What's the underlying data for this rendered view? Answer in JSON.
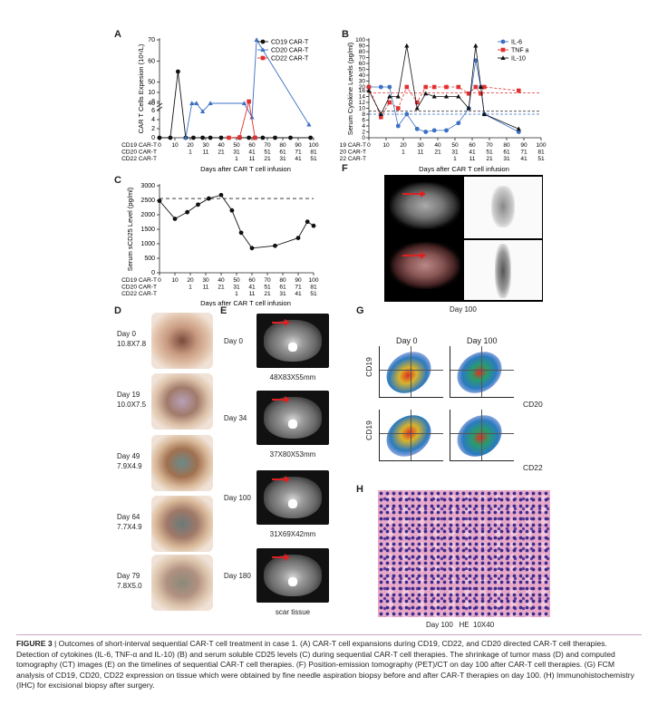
{
  "panels": {
    "A": {
      "letter": "A",
      "ylabel": "CAR T Cells Expesion (10⁶/L)",
      "xlabel": "Days after CAR T cell infusion",
      "legend": [
        "CD19 CAR-T",
        "CD20 CAR-T",
        "CD22 CAR-T"
      ],
      "yticks_top": [
        "40",
        "50",
        "60",
        "70"
      ],
      "yticks_bottom": [
        "0",
        "2",
        "4",
        "6",
        "8",
        "10"
      ],
      "day_rows": {
        "labels": [
          "CD19 CAR-T",
          "CD20 CAR-T",
          "CD22 CAR-T"
        ],
        "cd19": [
          "0",
          "10",
          "20",
          "30",
          "40",
          "50",
          "60",
          "70",
          "80",
          "90",
          "100"
        ],
        "cd20": [
          "1",
          "11",
          "21",
          "31",
          "41",
          "51",
          "61",
          "71",
          "81"
        ],
        "cd22": [
          "1",
          "11",
          "21",
          "31",
          "41",
          "51"
        ]
      }
    },
    "B": {
      "letter": "B",
      "ylabel": "Serum Cytokine Levels (pg/ml)",
      "xlabel": "Days after CAR T cell infusion",
      "legend": [
        "IL-6",
        "TNF a",
        "IL-10"
      ],
      "yticks_top": [
        "20",
        "30",
        "40",
        "50",
        "60",
        "70",
        "80",
        "90",
        "100"
      ],
      "yticks_bottom": [
        "0",
        "2",
        "4",
        "6",
        "8",
        "10",
        "12",
        "14",
        "16"
      ]
    },
    "C": {
      "letter": "C",
      "ylabel": "Serum sCD25 Level (pg/ml)",
      "xlabel": "Days after CAR T cell infusion",
      "yticks": [
        "0",
        "500",
        "1000",
        "1500",
        "2000",
        "2500",
        "3000"
      ]
    },
    "D": {
      "letter": "D",
      "items": [
        {
          "day": "Day 0",
          "size": "10.8X7.8"
        },
        {
          "day": "Day 19",
          "size": "10.0X7.5"
        },
        {
          "day": "Day 49",
          "size": "7.9X4.9"
        },
        {
          "day": "Day 64",
          "size": "7.7X4.9"
        },
        {
          "day": "Day 79",
          "size": "7.8X5.0"
        }
      ]
    },
    "E": {
      "letter": "E",
      "items": [
        {
          "day": "Day 0",
          "size": "48X83X55mm"
        },
        {
          "day": "Day 34",
          "size": "37X80X53mm"
        },
        {
          "day": "Day 100",
          "size": "31X69X42mm"
        },
        {
          "day": "Day 180",
          "size": "scar tissue"
        }
      ]
    },
    "F": {
      "letter": "F",
      "caption": "Day 100"
    },
    "G": {
      "letter": "G",
      "col_titles": [
        "Day 0",
        "Day 100"
      ],
      "row_y": [
        "CD19",
        "CD19"
      ],
      "row_x": [
        "CD20",
        "CD22"
      ]
    },
    "H": {
      "letter": "H",
      "caption": "Day 100   HE  10X40"
    }
  },
  "chart_data": [
    {
      "panel": "A",
      "type": "line",
      "xlabel": "Days after CAR T cell infusion",
      "ylabel": "CAR T Cells Expesion (10⁶/L)",
      "series": [
        {
          "name": "CD19 CAR-T",
          "x": [
            0,
            7,
            12,
            17,
            22,
            28,
            33,
            40,
            52,
            58,
            62,
            67,
            75,
            85,
            98
          ],
          "y": [
            0,
            0,
            55,
            0,
            0,
            0,
            0,
            0,
            0,
            0,
            0,
            0,
            0,
            0,
            0
          ]
        },
        {
          "name": "CD20 CAR-T",
          "x": [
            17,
            21,
            24,
            28,
            33,
            55,
            60,
            63,
            97
          ],
          "y": [
            0,
            35,
            27,
            5.8,
            32,
            30,
            4.5,
            70,
            2.9
          ]
        },
        {
          "name": "CD22 CAR-T",
          "x": [
            45,
            52,
            58,
            62
          ],
          "y": [
            0,
            0.1,
            8,
            0
          ]
        }
      ],
      "color": {
        "CD19 CAR-T": "#111111",
        "CD20 CAR-T": "#3a6fc4",
        "CD22 CAR-T": "#e03030"
      }
    },
    {
      "panel": "B",
      "type": "line",
      "xlabel": "Days after CAR T cell infusion",
      "ylabel": "Serum Cytokine Levels (pg/ml)",
      "series": [
        {
          "name": "IL-6",
          "x": [
            0,
            7,
            12,
            17,
            22,
            28,
            33,
            38,
            45,
            52,
            58,
            62,
            65,
            67,
            87
          ],
          "y": [
            20,
            20,
            20,
            4,
            8,
            3,
            2,
            2.5,
            2.5,
            5,
            10,
            65,
            20,
            8,
            2
          ]
        },
        {
          "name": "TNF a",
          "x": [
            0,
            7,
            12,
            17,
            22,
            28,
            33,
            38,
            45,
            52,
            58,
            62,
            65,
            67,
            87
          ],
          "y": [
            20,
            7,
            12,
            10,
            20,
            12,
            20,
            20,
            20,
            20,
            15,
            20,
            15,
            20,
            16
          ]
        },
        {
          "name": "IL-10",
          "x": [
            0,
            7,
            12,
            17,
            22,
            28,
            33,
            38,
            45,
            52,
            58,
            62,
            65,
            67,
            87
          ],
          "y": [
            16,
            8,
            14,
            14,
            90,
            10,
            15,
            14,
            14,
            14,
            10,
            90,
            20,
            8,
            3
          ]
        }
      ],
      "color": {
        "IL-6": "#3a6fc4",
        "TNF a": "#e03030",
        "IL-10": "#111111"
      }
    },
    {
      "panel": "C",
      "type": "line",
      "xlabel": "Days after CAR T cell infusion",
      "ylabel": "Serum sCD25 Level (pg/ml)",
      "ylim": [
        0,
        3000
      ],
      "reference_line": 2560,
      "series": [
        {
          "name": "sCD25",
          "x": [
            0,
            10,
            18,
            25,
            32,
            40,
            47,
            53,
            60,
            75,
            90,
            96,
            100
          ],
          "y": [
            2480,
            1860,
            2090,
            2350,
            2560,
            2680,
            2150,
            1380,
            850,
            930,
            1200,
            1760,
            1620
          ]
        }
      ]
    }
  ],
  "caption": {
    "title": "FIGURE 3",
    "text": "| Outcomes of short-interval sequential CAR-T cell treatment in case 1. (A) CAR-T cell expansions during CD19, CD22, and CD20 directed CAR-T cell therapies. Detection of cytokines (IL-6, TNF-α and IL-10) (B) and serum soluble CD25 levels (C) during sequential CAR-T cell therapies. The shrinkage of tumor mass (D) and computed tomography (CT) images (E) on the timelines of sequential CAR-T cell therapies. (F) Position-emission tomography (PET)/CT on day 100 after CAR-T cell therapies. (G) FCM analysis of CD19, CD20, CD22 expression on tissue which were obtained by fine needle aspiration biopsy before and after CAR-T therapies on day 100. (H) Immunohistochemistry (IHC) for excisional biopsy after surgery."
  }
}
